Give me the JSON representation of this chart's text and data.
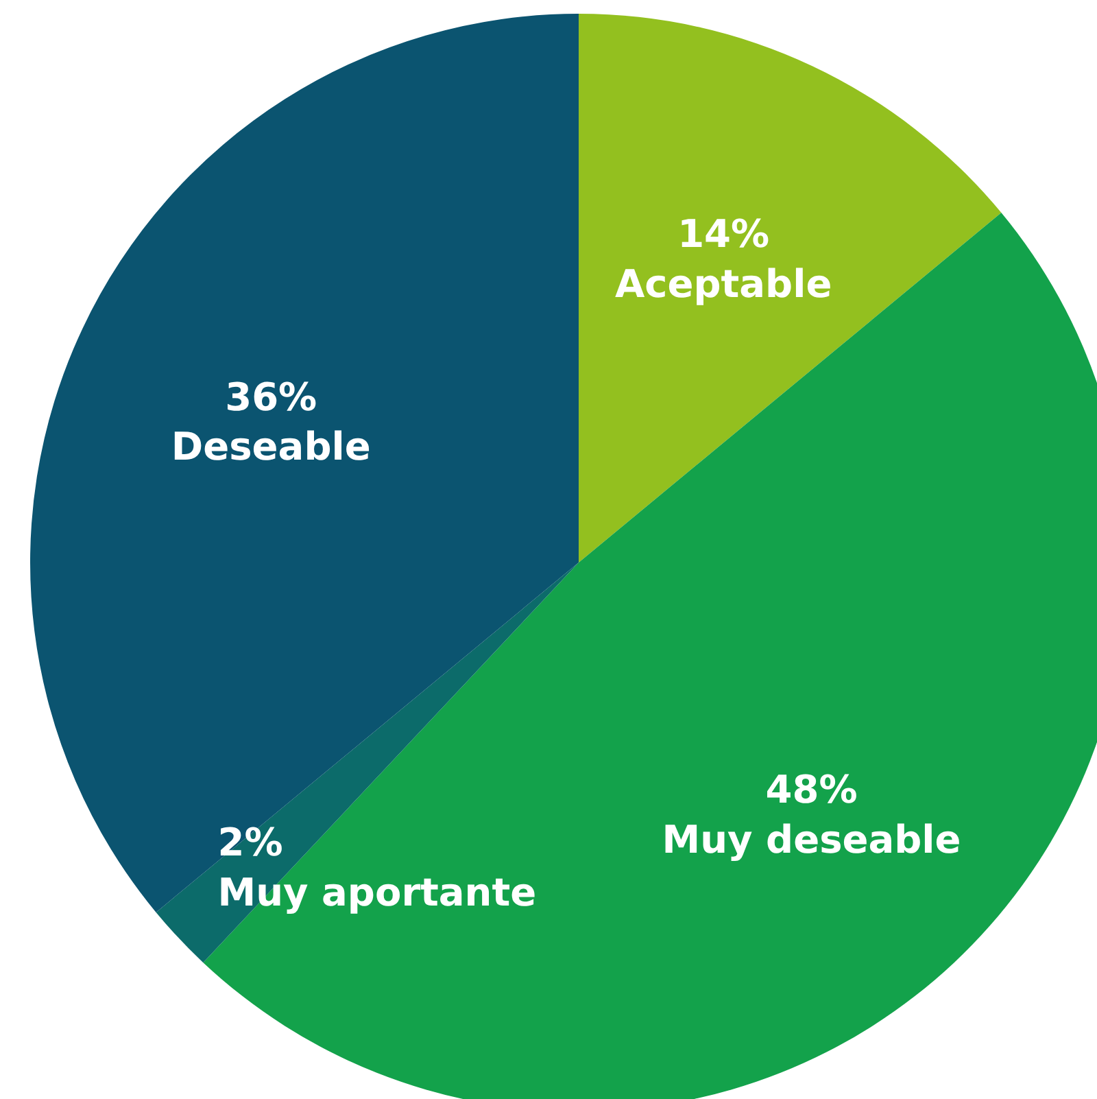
{
  "chart_data": {
    "type": "pie",
    "categories": [
      "Aceptable",
      "Muy deseable",
      "Muy aportante",
      "Deseable"
    ],
    "values": [
      14,
      48,
      2,
      36
    ],
    "colors": [
      "#93c01f",
      "#13a24b",
      "#0c6b6a",
      "#0b5470"
    ],
    "value_labels": [
      "14%",
      "48%",
      "2%",
      "36%"
    ]
  }
}
